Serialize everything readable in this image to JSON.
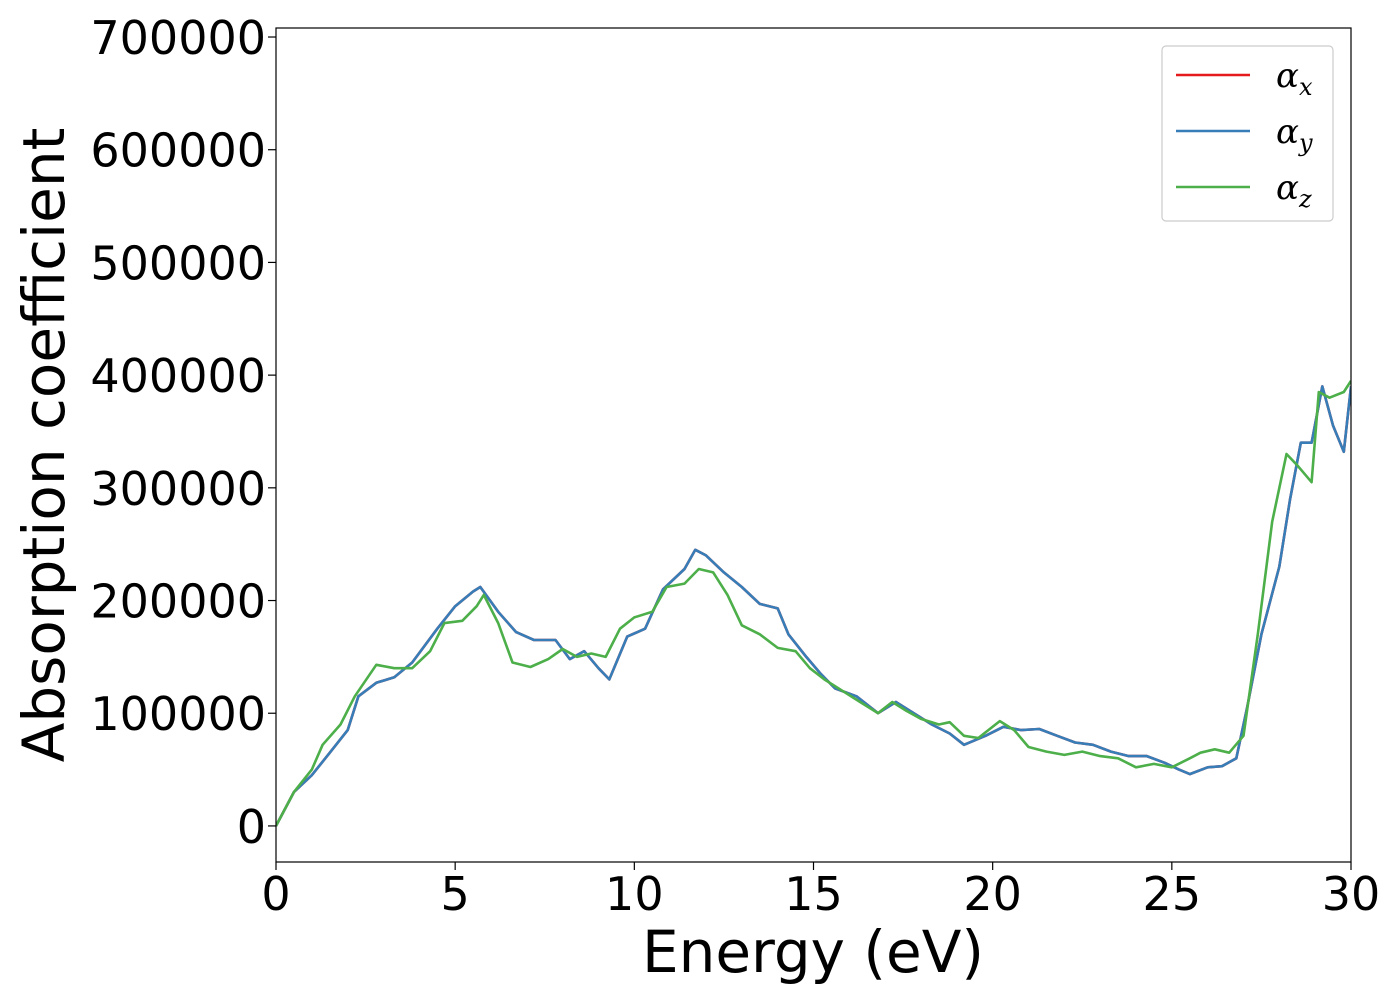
{
  "chart_data": {
    "type": "line",
    "title": "",
    "xlabel": "Energy (eV)",
    "ylabel": "Absorption coefficient",
    "xlim": [
      0,
      30
    ],
    "ylim": [
      -32000,
      708000
    ],
    "xticks": [
      0,
      5,
      10,
      15,
      20,
      25,
      30
    ],
    "yticks": [
      0,
      100000,
      200000,
      300000,
      400000,
      500000,
      600000,
      700000
    ],
    "grid": false,
    "legend_position": "top-right",
    "series": [
      {
        "name": "αx",
        "legend_base": "α",
        "legend_sub": "x",
        "color": "#e41a1c",
        "points": [
          [
            0,
            0
          ],
          [
            0.5,
            30000
          ],
          [
            1,
            45000
          ],
          [
            1.5,
            65000
          ],
          [
            2,
            85000
          ],
          [
            2.3,
            115000
          ],
          [
            2.8,
            127000
          ],
          [
            3.3,
            132000
          ],
          [
            3.8,
            145000
          ],
          [
            4.5,
            175000
          ],
          [
            5,
            195000
          ],
          [
            5.5,
            208000
          ],
          [
            5.7,
            212000
          ],
          [
            6.2,
            190000
          ],
          [
            6.7,
            172000
          ],
          [
            7.2,
            165000
          ],
          [
            7.8,
            165000
          ],
          [
            8.2,
            148000
          ],
          [
            8.6,
            155000
          ],
          [
            9,
            140000
          ],
          [
            9.3,
            130000
          ],
          [
            9.8,
            168000
          ],
          [
            10.3,
            175000
          ],
          [
            10.8,
            210000
          ],
          [
            11.4,
            228000
          ],
          [
            11.7,
            245000
          ],
          [
            12,
            240000
          ],
          [
            12.5,
            225000
          ],
          [
            13,
            212000
          ],
          [
            13.5,
            197000
          ],
          [
            14,
            193000
          ],
          [
            14.3,
            170000
          ],
          [
            14.8,
            150000
          ],
          [
            15.2,
            135000
          ],
          [
            15.6,
            122000
          ],
          [
            16.2,
            115000
          ],
          [
            16.8,
            100000
          ],
          [
            17.3,
            110000
          ],
          [
            17.8,
            100000
          ],
          [
            18.3,
            90000
          ],
          [
            18.8,
            82000
          ],
          [
            19.2,
            72000
          ],
          [
            19.8,
            80000
          ],
          [
            20.3,
            88000
          ],
          [
            20.8,
            85000
          ],
          [
            21.3,
            86000
          ],
          [
            21.8,
            80000
          ],
          [
            22.3,
            74000
          ],
          [
            22.8,
            72000
          ],
          [
            23.3,
            66000
          ],
          [
            23.8,
            62000
          ],
          [
            24.3,
            62000
          ],
          [
            24.8,
            56000
          ],
          [
            25.2,
            50000
          ],
          [
            25.5,
            46000
          ],
          [
            26,
            52000
          ],
          [
            26.4,
            53000
          ],
          [
            26.8,
            60000
          ],
          [
            27.1,
            105000
          ],
          [
            27.5,
            170000
          ],
          [
            28,
            230000
          ],
          [
            28.3,
            290000
          ],
          [
            28.6,
            340000
          ],
          [
            28.9,
            340000
          ],
          [
            29.2,
            390000
          ],
          [
            29.5,
            355000
          ],
          [
            29.8,
            332000
          ],
          [
            30,
            390000
          ]
        ]
      },
      {
        "name": "αy",
        "legend_base": "α",
        "legend_sub": "y",
        "color": "#377eb8",
        "points": [
          [
            0,
            0
          ],
          [
            0.5,
            30000
          ],
          [
            1,
            45000
          ],
          [
            1.5,
            65000
          ],
          [
            2,
            85000
          ],
          [
            2.3,
            115000
          ],
          [
            2.8,
            127000
          ],
          [
            3.3,
            132000
          ],
          [
            3.8,
            145000
          ],
          [
            4.5,
            175000
          ],
          [
            5,
            195000
          ],
          [
            5.5,
            208000
          ],
          [
            5.7,
            212000
          ],
          [
            6.2,
            190000
          ],
          [
            6.7,
            172000
          ],
          [
            7.2,
            165000
          ],
          [
            7.8,
            165000
          ],
          [
            8.2,
            148000
          ],
          [
            8.6,
            155000
          ],
          [
            9,
            140000
          ],
          [
            9.3,
            130000
          ],
          [
            9.8,
            168000
          ],
          [
            10.3,
            175000
          ],
          [
            10.8,
            210000
          ],
          [
            11.4,
            228000
          ],
          [
            11.7,
            245000
          ],
          [
            12,
            240000
          ],
          [
            12.5,
            225000
          ],
          [
            13,
            212000
          ],
          [
            13.5,
            197000
          ],
          [
            14,
            193000
          ],
          [
            14.3,
            170000
          ],
          [
            14.8,
            150000
          ],
          [
            15.2,
            135000
          ],
          [
            15.6,
            122000
          ],
          [
            16.2,
            115000
          ],
          [
            16.8,
            100000
          ],
          [
            17.3,
            110000
          ],
          [
            17.8,
            100000
          ],
          [
            18.3,
            90000
          ],
          [
            18.8,
            82000
          ],
          [
            19.2,
            72000
          ],
          [
            19.8,
            80000
          ],
          [
            20.3,
            88000
          ],
          [
            20.8,
            85000
          ],
          [
            21.3,
            86000
          ],
          [
            21.8,
            80000
          ],
          [
            22.3,
            74000
          ],
          [
            22.8,
            72000
          ],
          [
            23.3,
            66000
          ],
          [
            23.8,
            62000
          ],
          [
            24.3,
            62000
          ],
          [
            24.8,
            56000
          ],
          [
            25.2,
            50000
          ],
          [
            25.5,
            46000
          ],
          [
            26,
            52000
          ],
          [
            26.4,
            53000
          ],
          [
            26.8,
            60000
          ],
          [
            27.1,
            105000
          ],
          [
            27.5,
            170000
          ],
          [
            28,
            230000
          ],
          [
            28.3,
            290000
          ],
          [
            28.6,
            340000
          ],
          [
            28.9,
            340000
          ],
          [
            29.2,
            390000
          ],
          [
            29.5,
            355000
          ],
          [
            29.8,
            332000
          ],
          [
            30,
            390000
          ]
        ]
      },
      {
        "name": "αz",
        "legend_base": "α",
        "legend_sub": "z",
        "color": "#4daf4a",
        "points": [
          [
            0,
            0
          ],
          [
            0.5,
            30000
          ],
          [
            1,
            50000
          ],
          [
            1.3,
            72000
          ],
          [
            1.8,
            90000
          ],
          [
            2.2,
            115000
          ],
          [
            2.8,
            143000
          ],
          [
            3.3,
            140000
          ],
          [
            3.8,
            140000
          ],
          [
            4.3,
            155000
          ],
          [
            4.7,
            180000
          ],
          [
            5.2,
            182000
          ],
          [
            5.6,
            195000
          ],
          [
            5.8,
            205000
          ],
          [
            6.2,
            180000
          ],
          [
            6.6,
            145000
          ],
          [
            7.1,
            141000
          ],
          [
            7.6,
            148000
          ],
          [
            8,
            157000
          ],
          [
            8.4,
            150000
          ],
          [
            8.8,
            153000
          ],
          [
            9.2,
            150000
          ],
          [
            9.6,
            175000
          ],
          [
            10,
            185000
          ],
          [
            10.5,
            190000
          ],
          [
            10.9,
            212000
          ],
          [
            11.4,
            215000
          ],
          [
            11.8,
            228000
          ],
          [
            12.2,
            225000
          ],
          [
            12.6,
            205000
          ],
          [
            13,
            178000
          ],
          [
            13.5,
            170000
          ],
          [
            14,
            158000
          ],
          [
            14.5,
            155000
          ],
          [
            14.9,
            140000
          ],
          [
            15.3,
            130000
          ],
          [
            15.8,
            120000
          ],
          [
            16.3,
            110000
          ],
          [
            16.8,
            100000
          ],
          [
            17.2,
            110000
          ],
          [
            17.6,
            102000
          ],
          [
            18,
            95000
          ],
          [
            18.5,
            90000
          ],
          [
            18.8,
            92000
          ],
          [
            19.2,
            80000
          ],
          [
            19.6,
            78000
          ],
          [
            20.2,
            93000
          ],
          [
            20.6,
            85000
          ],
          [
            21,
            70000
          ],
          [
            21.5,
            66000
          ],
          [
            22,
            63000
          ],
          [
            22.5,
            66000
          ],
          [
            23,
            62000
          ],
          [
            23.5,
            60000
          ],
          [
            24,
            52000
          ],
          [
            24.5,
            55000
          ],
          [
            25,
            52000
          ],
          [
            25.5,
            60000
          ],
          [
            25.8,
            65000
          ],
          [
            26.2,
            68000
          ],
          [
            26.6,
            65000
          ],
          [
            27,
            80000
          ],
          [
            27.4,
            170000
          ],
          [
            27.8,
            270000
          ],
          [
            28.2,
            330000
          ],
          [
            28.5,
            320000
          ],
          [
            28.9,
            305000
          ],
          [
            29.1,
            385000
          ],
          [
            29.4,
            380000
          ],
          [
            29.8,
            385000
          ],
          [
            30,
            395000
          ]
        ]
      }
    ]
  }
}
